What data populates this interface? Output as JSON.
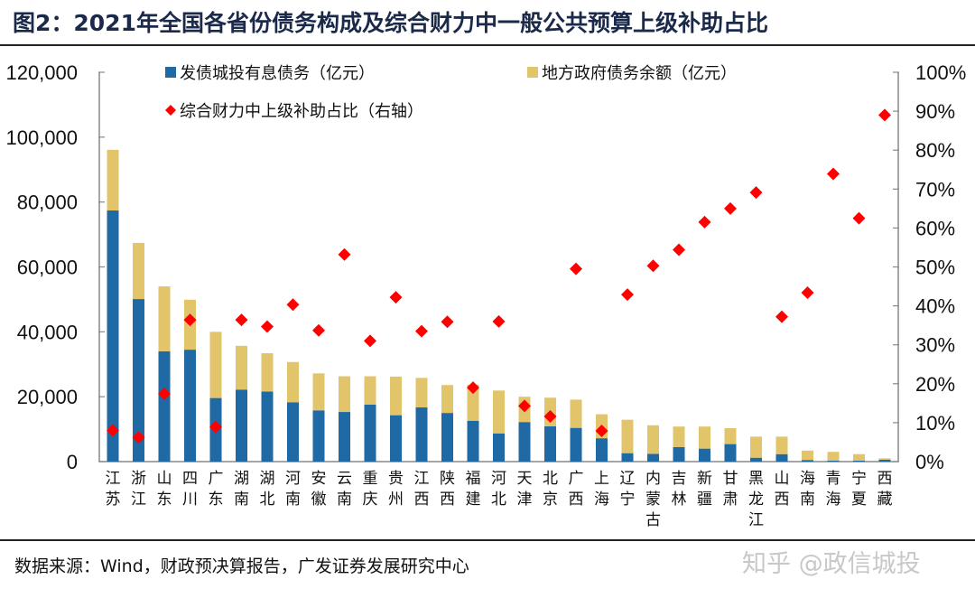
{
  "header": {
    "title": "图2：2021年全国各省份债务构成及综合财力中一般公共预算上级补助占比"
  },
  "footer": {
    "source": "数据来源：Wind，财政预决算报告，广发证券发展研究中心",
    "watermark": "知乎 @政信城投"
  },
  "chart_data": {
    "type": "bar",
    "stacked": true,
    "title": "2021年全国各省份债务构成及综合财力中一般公共预算上级补助占比",
    "categories": [
      "江苏",
      "浙江",
      "山东",
      "四川",
      "广东",
      "湖南",
      "湖北",
      "河南",
      "安徽",
      "云南",
      "重庆",
      "贵州",
      "江西",
      "陕西",
      "福建",
      "河北",
      "天津",
      "北京",
      "广西",
      "上海",
      "辽宁",
      "内蒙古",
      "吉林",
      "新疆",
      "甘肃",
      "黑龙江",
      "山西",
      "海南",
      "青海",
      "宁夏",
      "西藏"
    ],
    "category_labels": [
      [
        "江",
        "苏"
      ],
      [
        "浙",
        "江"
      ],
      [
        "山",
        "东"
      ],
      [
        "四",
        "川"
      ],
      [
        "广",
        "东"
      ],
      [
        "湖",
        "南"
      ],
      [
        "湖",
        "北"
      ],
      [
        "河",
        "南"
      ],
      [
        "安",
        "徽"
      ],
      [
        "云",
        "南"
      ],
      [
        "重",
        "庆"
      ],
      [
        "贵",
        "州"
      ],
      [
        "江",
        "西"
      ],
      [
        "陕",
        "西"
      ],
      [
        "福",
        "建"
      ],
      [
        "河",
        "北"
      ],
      [
        "天",
        "津"
      ],
      [
        "北",
        "京"
      ],
      [
        "广",
        "西"
      ],
      [
        "上",
        "海"
      ],
      [
        "辽",
        "宁"
      ],
      [
        "内",
        "蒙",
        "古"
      ],
      [
        "吉",
        "林"
      ],
      [
        "新",
        "疆"
      ],
      [
        "甘",
        "肃"
      ],
      [
        "黑",
        "龙",
        "江"
      ],
      [
        "山",
        "西"
      ],
      [
        "海",
        "南"
      ],
      [
        "青",
        "海"
      ],
      [
        "宁",
        "夏"
      ],
      [
        "西",
        "藏"
      ]
    ],
    "series": [
      {
        "name": "发债城投有息债务（亿元）",
        "type": "bar",
        "axis": "left",
        "color": "#1f6aa5",
        "values": [
          77400,
          50100,
          34000,
          34500,
          19600,
          22200,
          21600,
          18300,
          15800,
          15300,
          17600,
          14300,
          16700,
          15000,
          12600,
          8700,
          12200,
          10900,
          10400,
          7200,
          2600,
          2400,
          4500,
          4000,
          5400,
          1200,
          2300,
          500,
          300,
          300,
          600
        ]
      },
      {
        "name": "地方政府债务余额（亿元）",
        "type": "bar",
        "axis": "left",
        "color": "#e2c46b",
        "note": "stacked on top of first series; values are the segment sizes",
        "values": [
          18700,
          17300,
          20000,
          15400,
          20400,
          13500,
          11800,
          12400,
          11400,
          11000,
          8700,
          11900,
          9100,
          8600,
          11100,
          13200,
          7800,
          8800,
          8700,
          7400,
          10300,
          8800,
          6300,
          6800,
          4900,
          6500,
          5400,
          2900,
          2700,
          2000,
          400
        ]
      },
      {
        "name": "综合财力中上级补助占比（右轴）",
        "type": "scatter",
        "axis": "right",
        "color": "#ff0000",
        "marker": "diamond",
        "values": [
          8.0,
          6.2,
          17.4,
          36.4,
          8.9,
          36.4,
          34.7,
          40.3,
          33.7,
          53.2,
          31.0,
          42.2,
          33.5,
          35.9,
          19.0,
          36.0,
          14.3,
          11.6,
          49.5,
          7.9,
          42.9,
          50.3,
          54.4,
          61.5,
          65.0,
          69.1,
          37.2,
          43.4,
          73.9,
          62.5,
          89.0
        ]
      }
    ],
    "y_left": {
      "ylim": [
        0,
        120000
      ],
      "ticks": [
        "0",
        "20,000",
        "40,000",
        "60,000",
        "80,000",
        "100,000",
        "120,000"
      ],
      "tick_values": [
        0,
        20000,
        40000,
        60000,
        80000,
        100000,
        120000
      ]
    },
    "y_right": {
      "ylim": [
        0,
        100
      ],
      "ticks": [
        "0%",
        "10%",
        "20%",
        "30%",
        "40%",
        "50%",
        "60%",
        "70%",
        "80%",
        "90%",
        "100%"
      ],
      "tick_values": [
        0,
        10,
        20,
        30,
        40,
        50,
        60,
        70,
        80,
        90,
        100
      ]
    },
    "xlabel": "",
    "ylabel": "",
    "grid": false,
    "legend": {
      "placement": "top",
      "entries": [
        {
          "label": "发债城投有息债务（亿元）",
          "marker": "square",
          "color": "#1f6aa5"
        },
        {
          "label": "地方政府债务余额（亿元）",
          "marker": "square",
          "color": "#e2c46b"
        },
        {
          "label": "综合财力中上级补助占比（右轴）",
          "marker": "diamond",
          "color": "#ff0000"
        }
      ]
    }
  }
}
